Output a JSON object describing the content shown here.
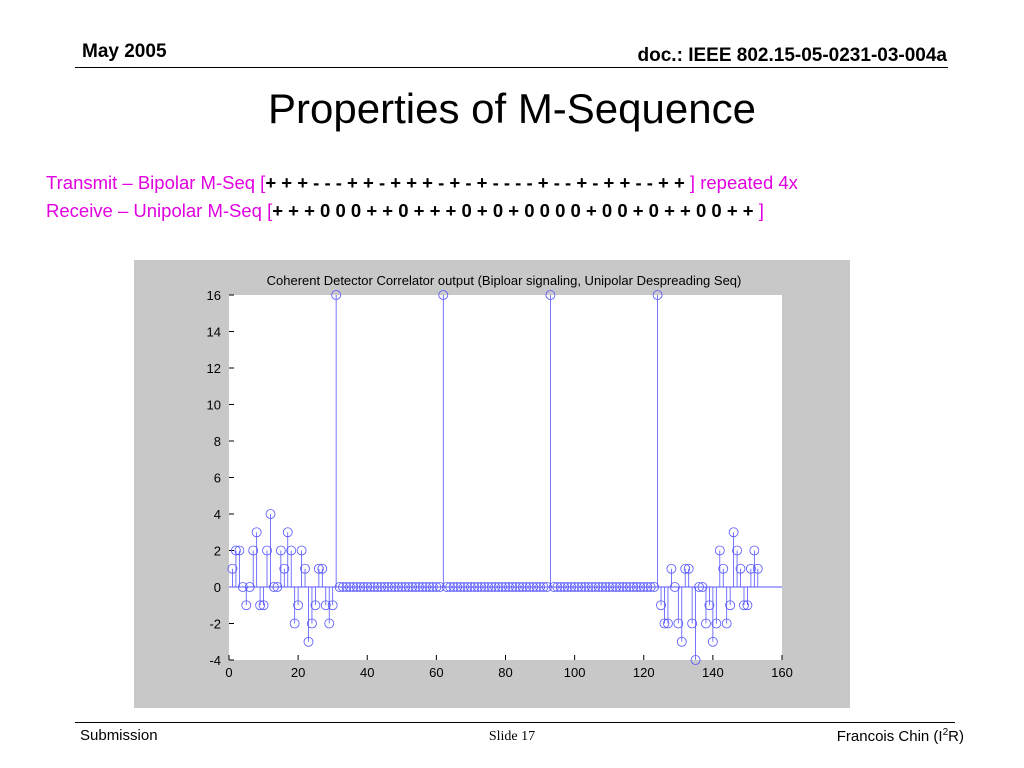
{
  "header": {
    "date": "May 2005",
    "doc": "doc.: IEEE 802.15-05-0231-03-004a"
  },
  "title": "Properties of M-Sequence",
  "transmit": {
    "prefix": "Transmit – Bipolar M-Seq [",
    "sequence": "+ + + - - - + + - + + + - + - + - - - - + - - + - + + - - + +",
    "suffix": " ] repeated 4x"
  },
  "receive": {
    "prefix": "Receive – Unipolar M-Seq [",
    "sequence": "+ + + 0 0 0 + + 0 + + + 0 + 0 + 0 0 0 0 + 0 0 + 0 + + 0 0 + +",
    "suffix": " ]"
  },
  "footer": {
    "left": "Submission",
    "center": "Slide 17",
    "right_name": "Francois Chin (I",
    "right_sup": "2",
    "right_end": "R)"
  },
  "colors": {
    "accent_text": "#e000e0",
    "stem": "#5555ff",
    "panel": "#c8c8c8"
  },
  "chart_data": {
    "type": "stem",
    "title": "Coherent Detector Correlator output (Biploar signaling, Unipolar Despreading Seq)",
    "xlabel": "",
    "ylabel": "",
    "xlim": [
      0,
      160
    ],
    "ylim": [
      -4,
      16
    ],
    "xticks": [
      0,
      20,
      40,
      60,
      80,
      100,
      120,
      140,
      160
    ],
    "yticks": [
      -4,
      -2,
      0,
      2,
      4,
      6,
      8,
      10,
      12,
      14,
      16
    ],
    "grid": false,
    "y": [
      1,
      2,
      2,
      0,
      -1,
      0,
      2,
      3,
      -1,
      -1,
      2,
      4,
      0,
      0,
      2,
      1,
      3,
      2,
      -2,
      -1,
      2,
      1,
      -3,
      -2,
      -1,
      1,
      1,
      -1,
      -2,
      -1,
      16,
      0,
      0,
      0,
      0,
      0,
      0,
      0,
      0,
      0,
      0,
      0,
      0,
      0,
      0,
      0,
      0,
      0,
      0,
      0,
      0,
      0,
      0,
      0,
      0,
      0,
      0,
      0,
      0,
      0,
      0,
      16,
      0,
      0,
      0,
      0,
      0,
      0,
      0,
      0,
      0,
      0,
      0,
      0,
      0,
      0,
      0,
      0,
      0,
      0,
      0,
      0,
      0,
      0,
      0,
      0,
      0,
      0,
      0,
      0,
      0,
      0,
      16,
      0,
      0,
      0,
      0,
      0,
      0,
      0,
      0,
      0,
      0,
      0,
      0,
      0,
      0,
      0,
      0,
      0,
      0,
      0,
      0,
      0,
      0,
      0,
      0,
      0,
      0,
      0,
      0,
      0,
      0,
      16,
      -1,
      -2,
      -2,
      1,
      0,
      -2,
      -3,
      1,
      1,
      -2,
      -4,
      0,
      0,
      -2,
      -1,
      -3,
      -2,
      2,
      1,
      -2,
      -1,
      3,
      2,
      1,
      -1,
      -1,
      1,
      2,
      1
    ]
  }
}
